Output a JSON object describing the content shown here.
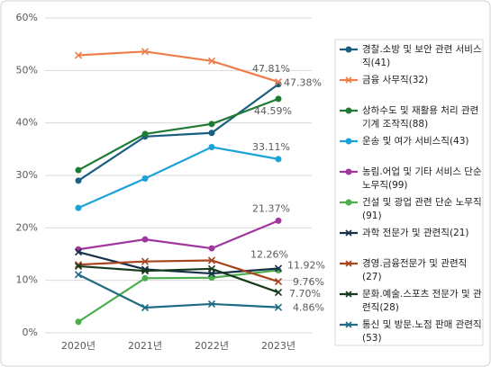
{
  "chart_data": {
    "type": "line",
    "categories": [
      "2020년",
      "2021년",
      "2022년",
      "2023년"
    ],
    "ylim": [
      0,
      60
    ],
    "yticks": [
      {
        "value": 0,
        "label": "0%"
      },
      {
        "value": 10,
        "label": "10%"
      },
      {
        "value": 20,
        "label": "20%"
      },
      {
        "value": 30,
        "label": "30%"
      },
      {
        "value": 40,
        "label": "40%"
      },
      {
        "value": 50,
        "label": "50%"
      },
      {
        "value": 60,
        "label": "60%"
      }
    ],
    "grid": true,
    "legend": "right",
    "series": [
      {
        "name": "경찰.소방 및 보안 관련 서비스직(41)",
        "color": "#1a5e80",
        "marker": "circle",
        "values": [
          29.0,
          37.4,
          38.1,
          47.38
        ],
        "value_labels": [
          null,
          null,
          null,
          "47.38%"
        ]
      },
      {
        "name": "금융 사무직(32)",
        "color": "#ed7d4a",
        "marker": "x",
        "values": [
          52.9,
          53.6,
          51.8,
          47.81
        ],
        "value_labels": [
          null,
          null,
          null,
          "47.81%"
        ]
      },
      {
        "name": "상하수도 및 재활용 처리 관련 기계 조작직(88)",
        "color": "#1e7a34",
        "marker": "circle",
        "values": [
          31.0,
          37.9,
          39.8,
          44.59
        ],
        "value_labels": [
          null,
          null,
          null,
          "44.59%"
        ]
      },
      {
        "name": "운송 및 여가 서비스직(43)",
        "color": "#1ba3d8",
        "marker": "circle",
        "values": [
          23.8,
          29.4,
          35.4,
          33.11
        ],
        "value_labels": [
          null,
          null,
          null,
          "33.11%"
        ]
      },
      {
        "name": "농림.어업 및 기타 서비스 단순 노무직(99)",
        "color": "#a0379e",
        "marker": "circle",
        "values": [
          15.9,
          17.8,
          16.1,
          21.37
        ],
        "value_labels": [
          null,
          null,
          null,
          "21.37%"
        ]
      },
      {
        "name": "건설 및 광업 관련 단순 노무직(91)",
        "color": "#4cae4c",
        "marker": "circle",
        "values": [
          2.1,
          10.4,
          10.5,
          11.92
        ],
        "value_labels": [
          null,
          null,
          null,
          "11.92%"
        ]
      },
      {
        "name": "과학 전문가 및 관련직(21)",
        "color": "#16304a",
        "marker": "x",
        "values": [
          15.4,
          12.1,
          11.3,
          12.26
        ],
        "value_labels": [
          null,
          null,
          null,
          "12.26%"
        ]
      },
      {
        "name": "경영.금융전문가 및 관련직(27)",
        "color": "#a5441f",
        "marker": "x",
        "values": [
          13.0,
          13.6,
          13.8,
          9.76
        ],
        "value_labels": [
          null,
          null,
          null,
          "9.76%"
        ]
      },
      {
        "name": "문화.예술.스포츠 전문가 및 관련직(28)",
        "color": "#163a1c",
        "marker": "x",
        "values": [
          12.7,
          11.8,
          12.2,
          7.7
        ],
        "value_labels": [
          null,
          null,
          null,
          "7.70%"
        ]
      },
      {
        "name": "통신 및 방문.노점 판매 관련직(53)",
        "color": "#1f6b86",
        "marker": "x",
        "values": [
          11.1,
          4.8,
          5.5,
          4.86
        ],
        "value_labels": [
          null,
          null,
          null,
          "4.86%"
        ]
      }
    ]
  }
}
